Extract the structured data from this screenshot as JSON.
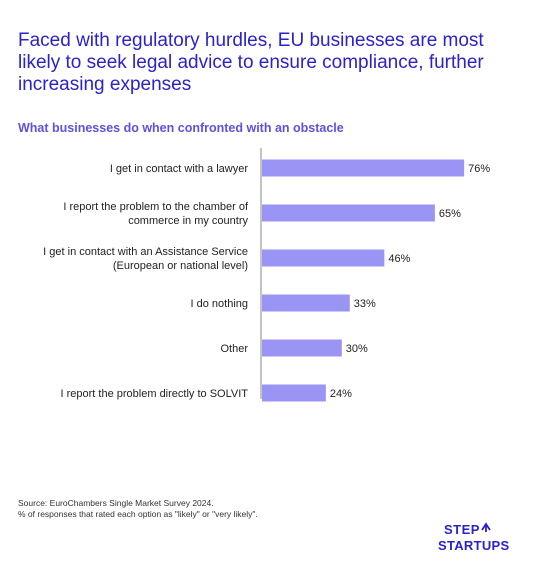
{
  "header": {
    "title": "Faced with regulatory hurdles, EU businesses are most likely to seek legal advice to ensure compliance, further increasing expenses",
    "subtitle": "What businesses do when confronted with an obstacle"
  },
  "chart_data": {
    "type": "bar",
    "orientation": "horizontal",
    "categories": [
      [
        "I get in contact with a lawyer"
      ],
      [
        "I report the problem to the chamber of",
        "commerce in my country"
      ],
      [
        "I get in contact with an Assistance Service",
        "(European or national level)"
      ],
      [
        "I do nothing"
      ],
      [
        "Other"
      ],
      [
        "I report the problem directly to SOLVIT"
      ]
    ],
    "values": [
      76,
      65,
      46,
      33,
      30,
      24
    ],
    "value_labels": [
      "76%",
      "65%",
      "46%",
      "33%",
      "30%",
      "24%"
    ],
    "xlim": [
      0,
      100
    ],
    "grid": false,
    "bar_color": "#9a95f5",
    "axis_color": "#888888"
  },
  "footer": {
    "source_line1": "Source: EuroChambers Single Market Survey 2024.",
    "source_line2": "% of responses that rated each option as \"likely\" or \"very likely\"."
  },
  "logo": {
    "line1": "STEP",
    "line2": "STARTUPS",
    "color": "#2b22c9"
  }
}
